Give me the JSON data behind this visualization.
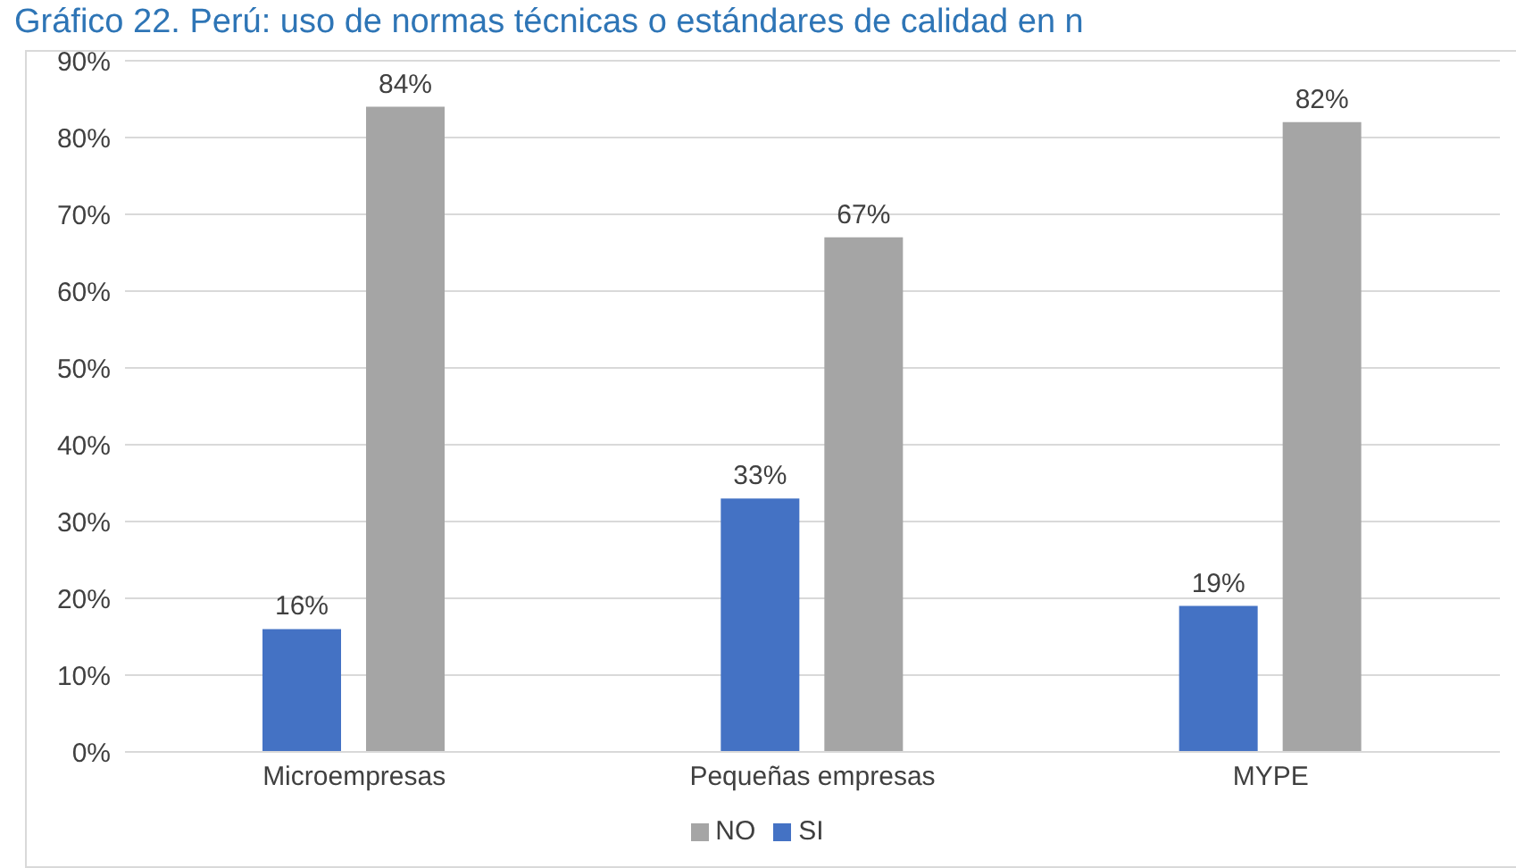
{
  "chart_data": {
    "type": "bar",
    "title": "Gráfico 22. Perú: uso de normas técnicas o estándares de calidad en n",
    "categories": [
      "Microempresas",
      "Pequeñas empresas",
      "MYPE"
    ],
    "series": [
      {
        "name": "SI",
        "color": "#4472c4",
        "values": [
          16,
          33,
          19
        ],
        "value_labels": [
          "16%",
          "33%",
          "19%"
        ]
      },
      {
        "name": "NO",
        "color": "#a5a5a5",
        "values": [
          84,
          67,
          82
        ],
        "value_labels": [
          "84%",
          "67%",
          "82%"
        ]
      }
    ],
    "ylim": [
      0,
      90
    ],
    "yticks": [
      {
        "value": 0,
        "label": "0%"
      },
      {
        "value": 10,
        "label": "10%"
      },
      {
        "value": 20,
        "label": "20%"
      },
      {
        "value": 30,
        "label": "30%"
      },
      {
        "value": 40,
        "label": "40%"
      },
      {
        "value": 50,
        "label": "50%"
      },
      {
        "value": 60,
        "label": "60%"
      },
      {
        "value": 70,
        "label": "70%"
      },
      {
        "value": 80,
        "label": "80%"
      },
      {
        "value": 90,
        "label": "90%"
      }
    ],
    "grid": "y",
    "legend": "bottom"
  }
}
